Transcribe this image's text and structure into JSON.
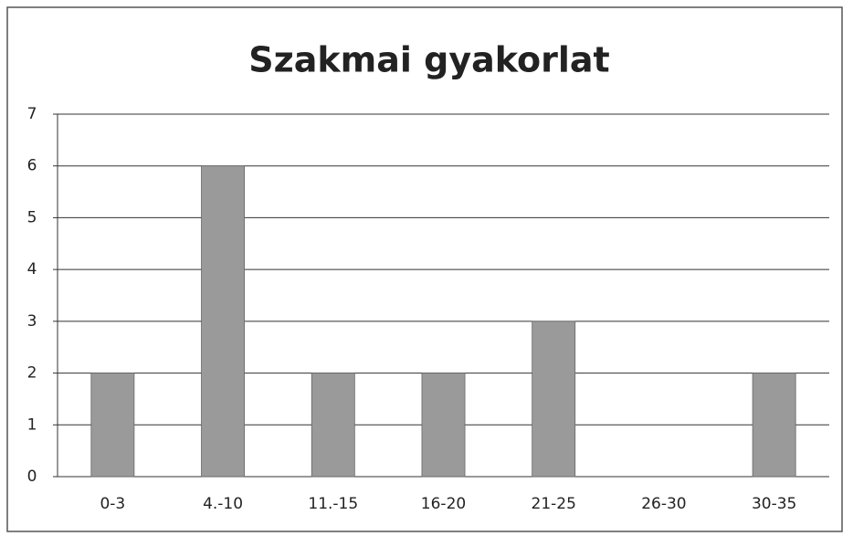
{
  "chart_data": {
    "type": "bar",
    "title": "Szakmai gyakorlat",
    "categories": [
      "0-3",
      "4.-10",
      "11.-15",
      "16-20",
      "21-25",
      "26-30",
      "30-35"
    ],
    "values": [
      2,
      6,
      2,
      2,
      3,
      0,
      2
    ],
    "color": "#9a9a9a",
    "ylim": [
      0,
      7
    ],
    "yticks": [
      0,
      1,
      2,
      3,
      4,
      5,
      6,
      7
    ],
    "grid": true
  }
}
